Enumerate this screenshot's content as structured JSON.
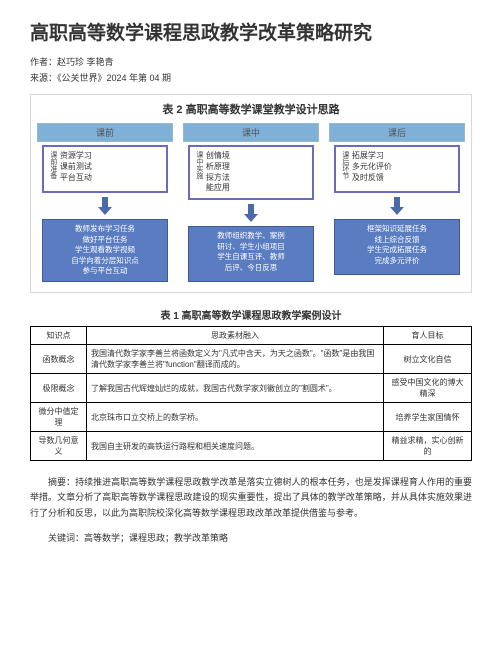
{
  "title": "高职高等数学课程思政教学改革策略研究",
  "author_line": "作者：赵巧珍 李艳青",
  "source_line": "来源：《公关世界》2024 年第 04 期",
  "diagram": {
    "title": "表 2 高职高等数学课堂教学设计思路",
    "colors": {
      "phase_head_bg": "#7fb0d8",
      "top_box_border": "#6b6bbd",
      "bottom_box_bg": "#5a7cc0",
      "arrow": "#4a6aa8"
    },
    "phases": [
      {
        "head": "课前",
        "side_label": "课前准备",
        "top_lines": [
          "资源学习",
          "课前测试",
          "平台互动"
        ],
        "bottom_lines": [
          "教师发布学习任务",
          "做好平台任务",
          "学生观看教学视频",
          "自学向着分层知识点",
          "参与平台互动"
        ]
      },
      {
        "head": "课中",
        "side_label": "课中实施",
        "top_lines": [
          "创情境",
          "析原理",
          "探方法",
          "能应用"
        ],
        "bottom_lines": [
          "教师组织教学、案例",
          "研讨、学生小组项目",
          "学生自课互评、教师",
          "后评、今日反思"
        ]
      },
      {
        "head": "课后",
        "side_label": "课后环节",
        "top_lines": [
          "拓展学习",
          "多元化评价",
          "及时反馈"
        ],
        "bottom_lines": [
          "框架知识延展任务",
          "线上综合反馈",
          "学生完成拓展任务",
          "完成多元评价"
        ]
      }
    ]
  },
  "table": {
    "title": "表 1 高职高等数学课程思政教学案例设计",
    "headers": [
      "知识点",
      "思政素材融入",
      "育人目标"
    ],
    "rows": [
      [
        "函数概念",
        "我国清代数学家李善兰将函数定义为\"凡式中含天，为天之函数\"。\"函数\"是由我国清代数学家李善兰将\"function\"翻译而成的。",
        "树立文化自信"
      ],
      [
        "极限概念",
        "了解我国古代辉煌灿烂的成就，我国古代数学家刘徽创立的\"割圆术\"。",
        "感受中国文化的博大精深"
      ],
      [
        "微分中值定理",
        "北京珠市口立交桥上的数学桥。",
        "培养学生家国情怀"
      ],
      [
        "导数几何意义",
        "我国自主研发的高铁运行路程和相关速度问题。",
        "精益求精，实心创新的"
      ]
    ]
  },
  "abstract": "摘要：持续推进高职高等数学课程思政教学改革是落实立德树人的根本任务，也是发挥课程育人作用的重要举措。文章分析了高职高等数学课程思政建设的现实重要性，提出了具体的教学改革策略，并从具体实施效果进行了分析和反思，以此为高职院校深化高等数学课程思政改革改革提供借鉴与参考。",
  "keywords": "关键词：高等数学；课程思政；教学改革策略"
}
